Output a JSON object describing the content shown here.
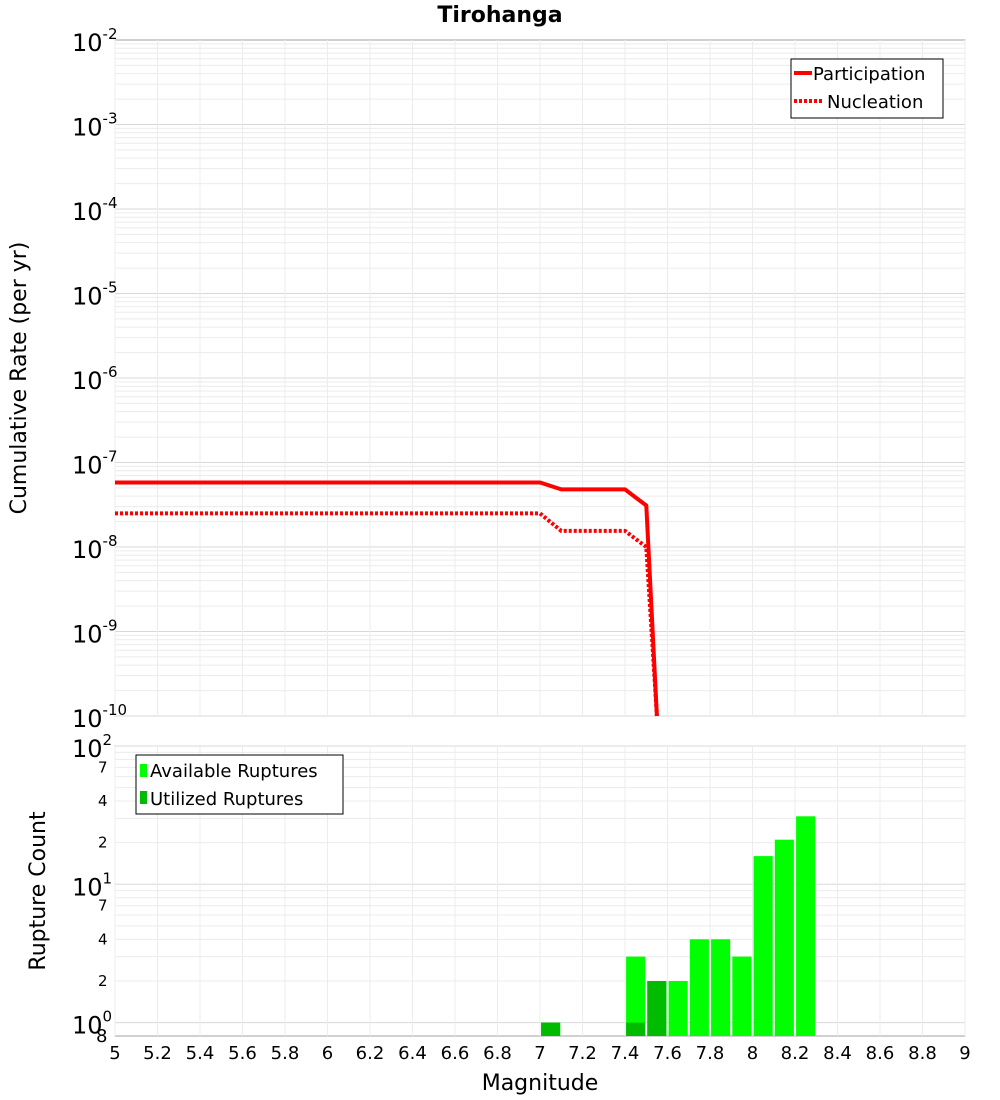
{
  "chart_data": [
    {
      "type": "line",
      "title": "Tirohanga",
      "xlabel": "",
      "ylabel": "Cumulative Rate (per yr)",
      "y_scale": "log",
      "ylim": [
        1e-10,
        0.01
      ],
      "xlim": [
        5,
        9
      ],
      "y_tick_labels": [
        "10^-10",
        "10^-9",
        "10^-8",
        "10^-7",
        "10^-6",
        "10^-5",
        "10^-4",
        "10^-3",
        "10^-2"
      ],
      "grid": true,
      "legend_position": "top-right",
      "series": [
        {
          "name": "Participation",
          "style": "solid",
          "color": "#ff0000",
          "x": [
            5.0,
            7.0,
            7.1,
            7.4,
            7.5,
            7.55
          ],
          "y": [
            5.8e-08,
            5.8e-08,
            4.8e-08,
            4.8e-08,
            3.1e-08,
            1e-10
          ]
        },
        {
          "name": "Nucleation",
          "style": "dotted",
          "color": "#ff0000",
          "x": [
            5.0,
            7.0,
            7.1,
            7.4,
            7.5,
            7.55
          ],
          "y": [
            2.5e-08,
            2.5e-08,
            1.55e-08,
            1.55e-08,
            1e-08,
            1e-10
          ]
        }
      ]
    },
    {
      "type": "bar",
      "xlabel": "Magnitude",
      "ylabel": "Rupture Count",
      "y_scale": "log",
      "ylim": [
        0.8,
        100
      ],
      "xlim": [
        5,
        9
      ],
      "x_tick_labels": [
        "5",
        "5.2",
        "5.4",
        "5.6",
        "5.8",
        "6",
        "6.2",
        "6.4",
        "6.6",
        "6.8",
        "7",
        "7.2",
        "7.4",
        "7.6",
        "7.8",
        "8",
        "8.2",
        "8.4",
        "8.6",
        "8.8",
        "9"
      ],
      "y_major_tick_labels": [
        {
          "base": "10",
          "exp": "0",
          "value": 1
        },
        {
          "base": "10",
          "exp": "1",
          "value": 10
        },
        {
          "base": "10",
          "exp": "2",
          "value": 100
        }
      ],
      "y_minor_tick_labels": [
        {
          "label": "8",
          "value": 0.8
        },
        {
          "label": "2",
          "value": 2
        },
        {
          "label": "4",
          "value": 4
        },
        {
          "label": "7",
          "value": 7
        },
        {
          "label": "2",
          "value": 20
        },
        {
          "label": "4",
          "value": 40
        },
        {
          "label": "7",
          "value": 70
        }
      ],
      "grid": true,
      "legend_position": "top-left",
      "bar_width": 0.09,
      "series": [
        {
          "name": "Available Ruptures",
          "color": "#00ff00",
          "x": [
            7.05,
            7.45,
            7.55,
            7.65,
            7.75,
            7.85,
            7.95,
            8.05,
            8.15,
            8.25
          ],
          "values": [
            1,
            3,
            2,
            2,
            4,
            4,
            3,
            16,
            21,
            31
          ]
        },
        {
          "name": "Utilized Ruptures",
          "color": "#00bb00",
          "x": [
            7.05,
            7.45,
            7.55
          ],
          "values": [
            1,
            1,
            2
          ]
        }
      ]
    }
  ]
}
